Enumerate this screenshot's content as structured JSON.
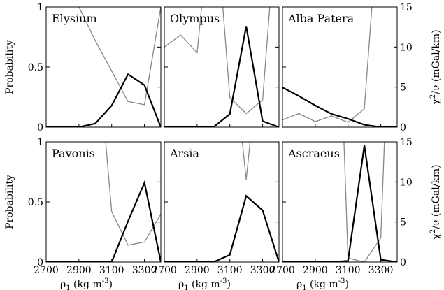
{
  "chart_data": {
    "type": "line",
    "layout": "2x3 grid, shared axes",
    "colors": {
      "probability": "#000000",
      "chi2": "#888888",
      "frame": "#000000"
    },
    "x_axis": {
      "range": [
        2700,
        3400
      ],
      "ticks": [
        2700,
        2900,
        3100,
        3300
      ],
      "tick_labels": [
        "2700",
        "2900",
        "3100",
        "3300"
      ],
      "label_main": "ρ",
      "label_sub": "1",
      "label_rest": " (kg m",
      "label_sup": "-3",
      "label_close": ")"
    },
    "y_left": {
      "label": "Probability",
      "range": [
        0,
        1
      ],
      "ticks": [
        0,
        0.5,
        1
      ],
      "tick_labels": [
        "0",
        "0.5",
        "1"
      ]
    },
    "y_right": {
      "label_chi": "χ",
      "label_sup": "2",
      "label_rest": "/ν (mGal/km)",
      "range": [
        0,
        15
      ],
      "ticks": [
        0,
        5,
        10,
        15
      ],
      "tick_labels": [
        "0",
        "5",
        "10",
        "15"
      ]
    },
    "panels": [
      {
        "name": "Elysium",
        "probability": {
          "x": [
            2700,
            2800,
            2900,
            3000,
            3100,
            3200,
            3300,
            3400
          ],
          "y": [
            0,
            0,
            0,
            0.03,
            0.18,
            0.44,
            0.35,
            0
          ]
        },
        "chi2": {
          "x": [
            2700,
            2800,
            2900,
            3000,
            3100,
            3200,
            3300,
            3400
          ],
          "y": [
            30,
            30,
            15,
            10.8,
            7,
            3.2,
            2.8,
            15
          ]
        }
      },
      {
        "name": "Olympus",
        "probability": {
          "x": [
            2700,
            2800,
            2900,
            3000,
            3100,
            3200,
            3300,
            3400
          ],
          "y": [
            0,
            0,
            0,
            0,
            0.11,
            0.84,
            0.05,
            0
          ]
        },
        "chi2": {
          "x": [
            2700,
            2800,
            2900,
            3000,
            3100,
            3200,
            3300,
            3400
          ],
          "y": [
            10,
            11.5,
            9.3,
            30,
            3.7,
            1.7,
            3.4,
            30
          ]
        }
      },
      {
        "name": "Alba Patera",
        "probability": {
          "x": [
            2700,
            2800,
            2900,
            3000,
            3100,
            3200,
            3300,
            3400
          ],
          "y": [
            0.33,
            0.26,
            0.18,
            0.11,
            0.07,
            0.02,
            0,
            0
          ]
        },
        "chi2": {
          "x": [
            2700,
            2800,
            2900,
            3000,
            3100,
            3200,
            3300,
            3400
          ],
          "y": [
            0.9,
            1.7,
            0.7,
            1.4,
            0.6,
            2.3,
            30,
            30
          ]
        }
      },
      {
        "name": "Pavonis",
        "probability": {
          "x": [
            2700,
            2800,
            2900,
            3000,
            3100,
            3200,
            3300,
            3400
          ],
          "y": [
            0,
            0,
            0,
            0,
            0,
            0.34,
            0.66,
            0
          ]
        },
        "chi2": {
          "x": [
            3000,
            3100,
            3200,
            3300,
            3400
          ],
          "y": [
            30,
            6.3,
            2.1,
            2.5,
            6
          ]
        }
      },
      {
        "name": "Arsia",
        "probability": {
          "x": [
            2700,
            2800,
            2900,
            3000,
            3100,
            3200,
            3300,
            3400
          ],
          "y": [
            0,
            0,
            0,
            0,
            0.06,
            0.55,
            0.43,
            0
          ]
        },
        "chi2": {
          "x": [
            3100,
            3200,
            3300
          ],
          "y": [
            30,
            10.3,
            30
          ]
        }
      },
      {
        "name": "Ascraeus",
        "probability": {
          "x": [
            2700,
            2800,
            2900,
            3000,
            3100,
            3200,
            3300,
            3400
          ],
          "y": [
            0,
            0,
            0,
            0,
            0.01,
            0.97,
            0.02,
            0
          ]
        },
        "chi2": {
          "x": [
            3050,
            3100,
            3200,
            3300,
            3350
          ],
          "y": [
            30,
            0.5,
            0,
            3,
            30
          ]
        }
      }
    ]
  }
}
